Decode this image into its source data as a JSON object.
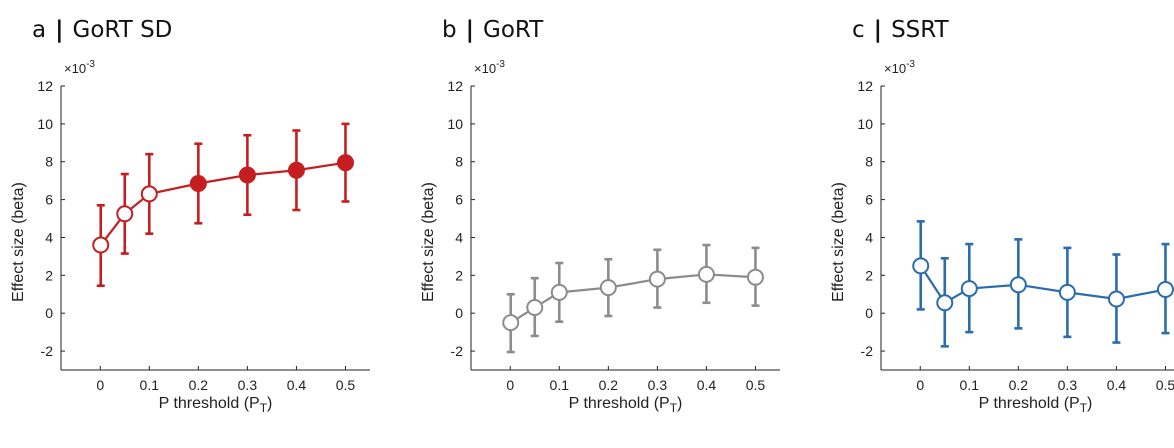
{
  "chart_data": [
    {
      "panel_letter": "a",
      "title": "GoRT SD",
      "type": "line",
      "color": "#c41e20",
      "xlabel": "P threshold (P",
      "xlabel_sub": "T",
      "ylabel": "Effect size (beta)",
      "y_exponent": "×10",
      "y_exponent_power": "-3",
      "xlim": [
        -0.08,
        0.55
      ],
      "ylim": [
        -3,
        12
      ],
      "xticks": [
        0,
        0.1,
        0.2,
        0.3,
        0.4,
        0.5
      ],
      "xtick_labels": [
        "0",
        "0.1",
        "0.2",
        "0.3",
        "0.4",
        "0.5"
      ],
      "yticks": [
        -2,
        0,
        2,
        4,
        6,
        8,
        10,
        12
      ],
      "ytick_labels": [
        "-2",
        "0",
        "2",
        "4",
        "6",
        "8",
        "10",
        "12"
      ],
      "x": [
        0.001,
        0.05,
        0.1,
        0.2,
        0.3,
        0.4,
        0.5
      ],
      "y": [
        3.6,
        5.25,
        6.3,
        6.85,
        7.3,
        7.55,
        7.95
      ],
      "err_low": [
        1.45,
        3.15,
        4.2,
        4.75,
        5.2,
        5.45,
        5.9
      ],
      "err_high": [
        5.7,
        7.35,
        8.4,
        8.95,
        9.4,
        9.65,
        10.0
      ],
      "filled": [
        false,
        false,
        false,
        true,
        true,
        true,
        true
      ]
    },
    {
      "panel_letter": "b",
      "title": "GoRT",
      "type": "line",
      "color": "#8c8c8c",
      "xlabel": "P threshold (P",
      "xlabel_sub": "T",
      "ylabel": "Effect size (beta)",
      "y_exponent": "×10",
      "y_exponent_power": "-3",
      "xlim": [
        -0.08,
        0.55
      ],
      "ylim": [
        -3,
        12
      ],
      "xticks": [
        0,
        0.1,
        0.2,
        0.3,
        0.4,
        0.5
      ],
      "xtick_labels": [
        "0",
        "0.1",
        "0.2",
        "0.3",
        "0.4",
        "0.5"
      ],
      "yticks": [
        -2,
        0,
        2,
        4,
        6,
        8,
        10,
        12
      ],
      "ytick_labels": [
        "-2",
        "0",
        "2",
        "4",
        "6",
        "8",
        "10",
        "12"
      ],
      "x": [
        0.001,
        0.05,
        0.1,
        0.2,
        0.3,
        0.4,
        0.5
      ],
      "y": [
        -0.5,
        0.3,
        1.1,
        1.35,
        1.8,
        2.05,
        1.9
      ],
      "err_low": [
        -2.05,
        -1.2,
        -0.45,
        -0.15,
        0.3,
        0.55,
        0.4
      ],
      "err_high": [
        1.0,
        1.85,
        2.65,
        2.85,
        3.35,
        3.6,
        3.45
      ],
      "filled": [
        false,
        false,
        false,
        false,
        false,
        false,
        false
      ]
    },
    {
      "panel_letter": "c",
      "title": "SSRT",
      "type": "line",
      "color": "#2b6cae",
      "xlabel": "P threshold (P",
      "xlabel_sub": "T",
      "ylabel": "Effect size (beta)",
      "y_exponent": "×10",
      "y_exponent_power": "-3",
      "xlim": [
        -0.08,
        0.55
      ],
      "ylim": [
        -3,
        12
      ],
      "xticks": [
        0,
        0.1,
        0.2,
        0.3,
        0.4,
        0.5
      ],
      "xtick_labels": [
        "0",
        "0.1",
        "0.2",
        "0.3",
        "0.4",
        "0.5"
      ],
      "yticks": [
        -2,
        0,
        2,
        4,
        6,
        8,
        10,
        12
      ],
      "ytick_labels": [
        "-2",
        "0",
        "2",
        "4",
        "6",
        "8",
        "10",
        "12"
      ],
      "x": [
        0.001,
        0.05,
        0.1,
        0.2,
        0.3,
        0.4,
        0.5
      ],
      "y": [
        2.5,
        0.55,
        1.3,
        1.5,
        1.1,
        0.75,
        1.25
      ],
      "err_low": [
        0.2,
        -1.75,
        -1.0,
        -0.8,
        -1.25,
        -1.55,
        -1.05
      ],
      "err_high": [
        4.85,
        2.9,
        3.65,
        3.9,
        3.45,
        3.1,
        3.65
      ],
      "filled": [
        false,
        false,
        false,
        false,
        false,
        false,
        false
      ]
    }
  ]
}
